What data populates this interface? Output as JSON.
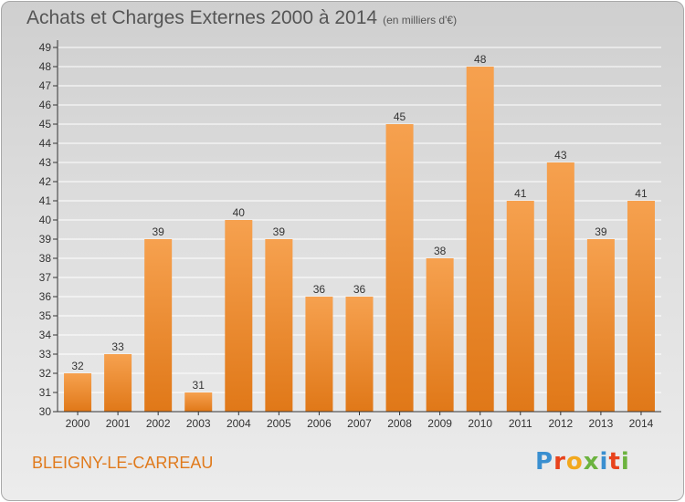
{
  "header": {
    "title": "Achats et Charges Externes 2000 à 2014",
    "subtitle": "(en milliers d'€)"
  },
  "footer": {
    "commune": "BLEIGNY-LE-CARREAU",
    "brand": "Proxiti"
  },
  "chart_data": {
    "type": "bar",
    "categories": [
      "2000",
      "2001",
      "2002",
      "2003",
      "2004",
      "2005",
      "2006",
      "2007",
      "2008",
      "2009",
      "2010",
      "2011",
      "2012",
      "2013",
      "2014"
    ],
    "values": [
      32,
      33,
      39,
      31,
      40,
      39,
      36,
      36,
      45,
      38,
      48,
      41,
      43,
      39,
      41
    ],
    "title": "Achats et Charges Externes 2000 à 2014",
    "subtitle": "(en milliers d'€)",
    "xlabel": "",
    "ylabel": "",
    "ylim": [
      30,
      49
    ],
    "yticks": [
      30,
      31,
      32,
      33,
      34,
      35,
      36,
      37,
      38,
      39,
      40,
      41,
      42,
      43,
      44,
      45,
      46,
      47,
      48,
      49
    ],
    "grid": true,
    "data_labels": true,
    "colors": {
      "bar_top": "#f6a14f",
      "bar_bottom": "#e07818",
      "grid": "#ffffff",
      "axis": "#333333",
      "text": "#333333"
    }
  }
}
